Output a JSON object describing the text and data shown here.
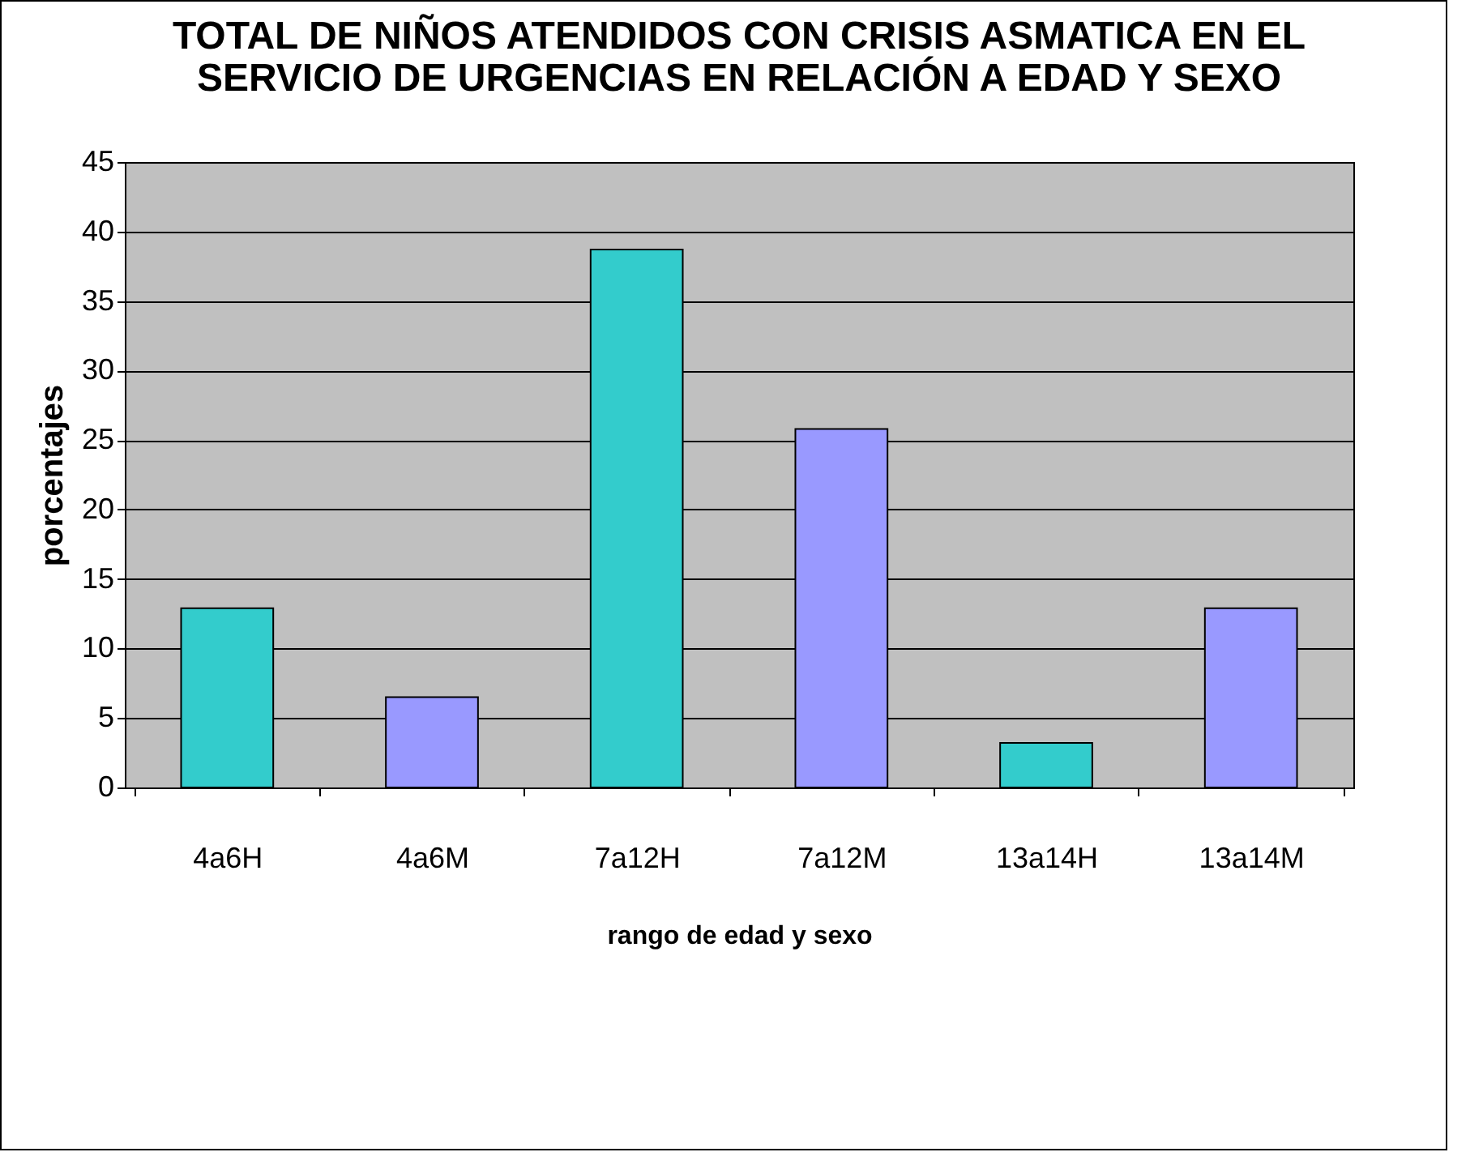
{
  "chart_data": {
    "type": "bar",
    "title": "TOTAL DE NIÑOS ATENDIDOS CON CRISIS ASMATICA EN EL SERVICIO DE URGENCIAS EN RELACIÓN A EDAD Y SEXO",
    "xlabel": "rango de edad y sexo",
    "ylabel": "porcentajes",
    "categories": [
      "4a6H",
      "4a6M",
      "7a12H",
      "7a12M",
      "13a14H",
      "13a14M"
    ],
    "values": [
      12.9,
      6.5,
      38.7,
      25.8,
      3.2,
      12.9
    ],
    "colors": [
      "#33cccc",
      "#9999ff",
      "#33cccc",
      "#9999ff",
      "#33cccc",
      "#9999ff"
    ],
    "ylim": [
      0,
      45
    ],
    "yticks": [
      0,
      5,
      10,
      15,
      20,
      25,
      30,
      35,
      40,
      45
    ],
    "grid": "y"
  }
}
